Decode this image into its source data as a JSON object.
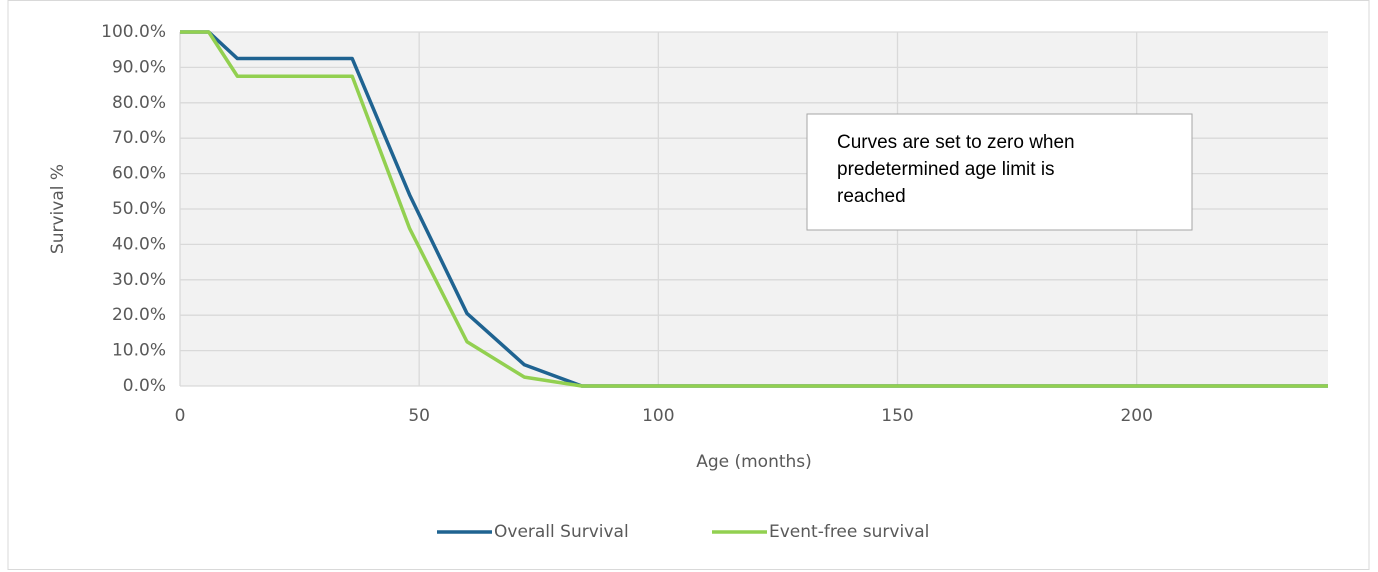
{
  "chart_data": {
    "type": "line",
    "xlabel": "Age (months)",
    "ylabel": "Survival %",
    "x": [
      0,
      6,
      12,
      36,
      48,
      60,
      72,
      84,
      240
    ],
    "series": [
      {
        "name": "Overall Survival",
        "color": "#1f6391",
        "values": [
          100,
          100,
          92.5,
          92.5,
          54,
          20.5,
          6,
          0,
          0
        ]
      },
      {
        "name": "Event-free survival",
        "color": "#92d050",
        "values": [
          100,
          100,
          87.5,
          87.5,
          44.5,
          12.5,
          2.5,
          0,
          0
        ]
      }
    ],
    "xlim": [
      0,
      240
    ],
    "xticks": [
      0,
      50,
      100,
      150,
      200
    ],
    "ylim": [
      0,
      100
    ],
    "yticks": [
      {
        "value": 0,
        "label": "0.0%"
      },
      {
        "value": 10,
        "label": "10.0%"
      },
      {
        "value": 20,
        "label": "20.0%"
      },
      {
        "value": 30,
        "label": "30.0%"
      },
      {
        "value": 40,
        "label": "40.0%"
      },
      {
        "value": 50,
        "label": "50.0%"
      },
      {
        "value": 60,
        "label": "60.0%"
      },
      {
        "value": 70,
        "label": "70.0%"
      },
      {
        "value": 80,
        "label": "80.0%"
      },
      {
        "value": 90,
        "label": "90.0%"
      },
      {
        "value": 100,
        "label": "100.0%"
      }
    ],
    "grid": true,
    "legend": "bottom",
    "annotation": [
      "Curves are set to zero when",
      "predetermined age limit is",
      "reached"
    ]
  }
}
